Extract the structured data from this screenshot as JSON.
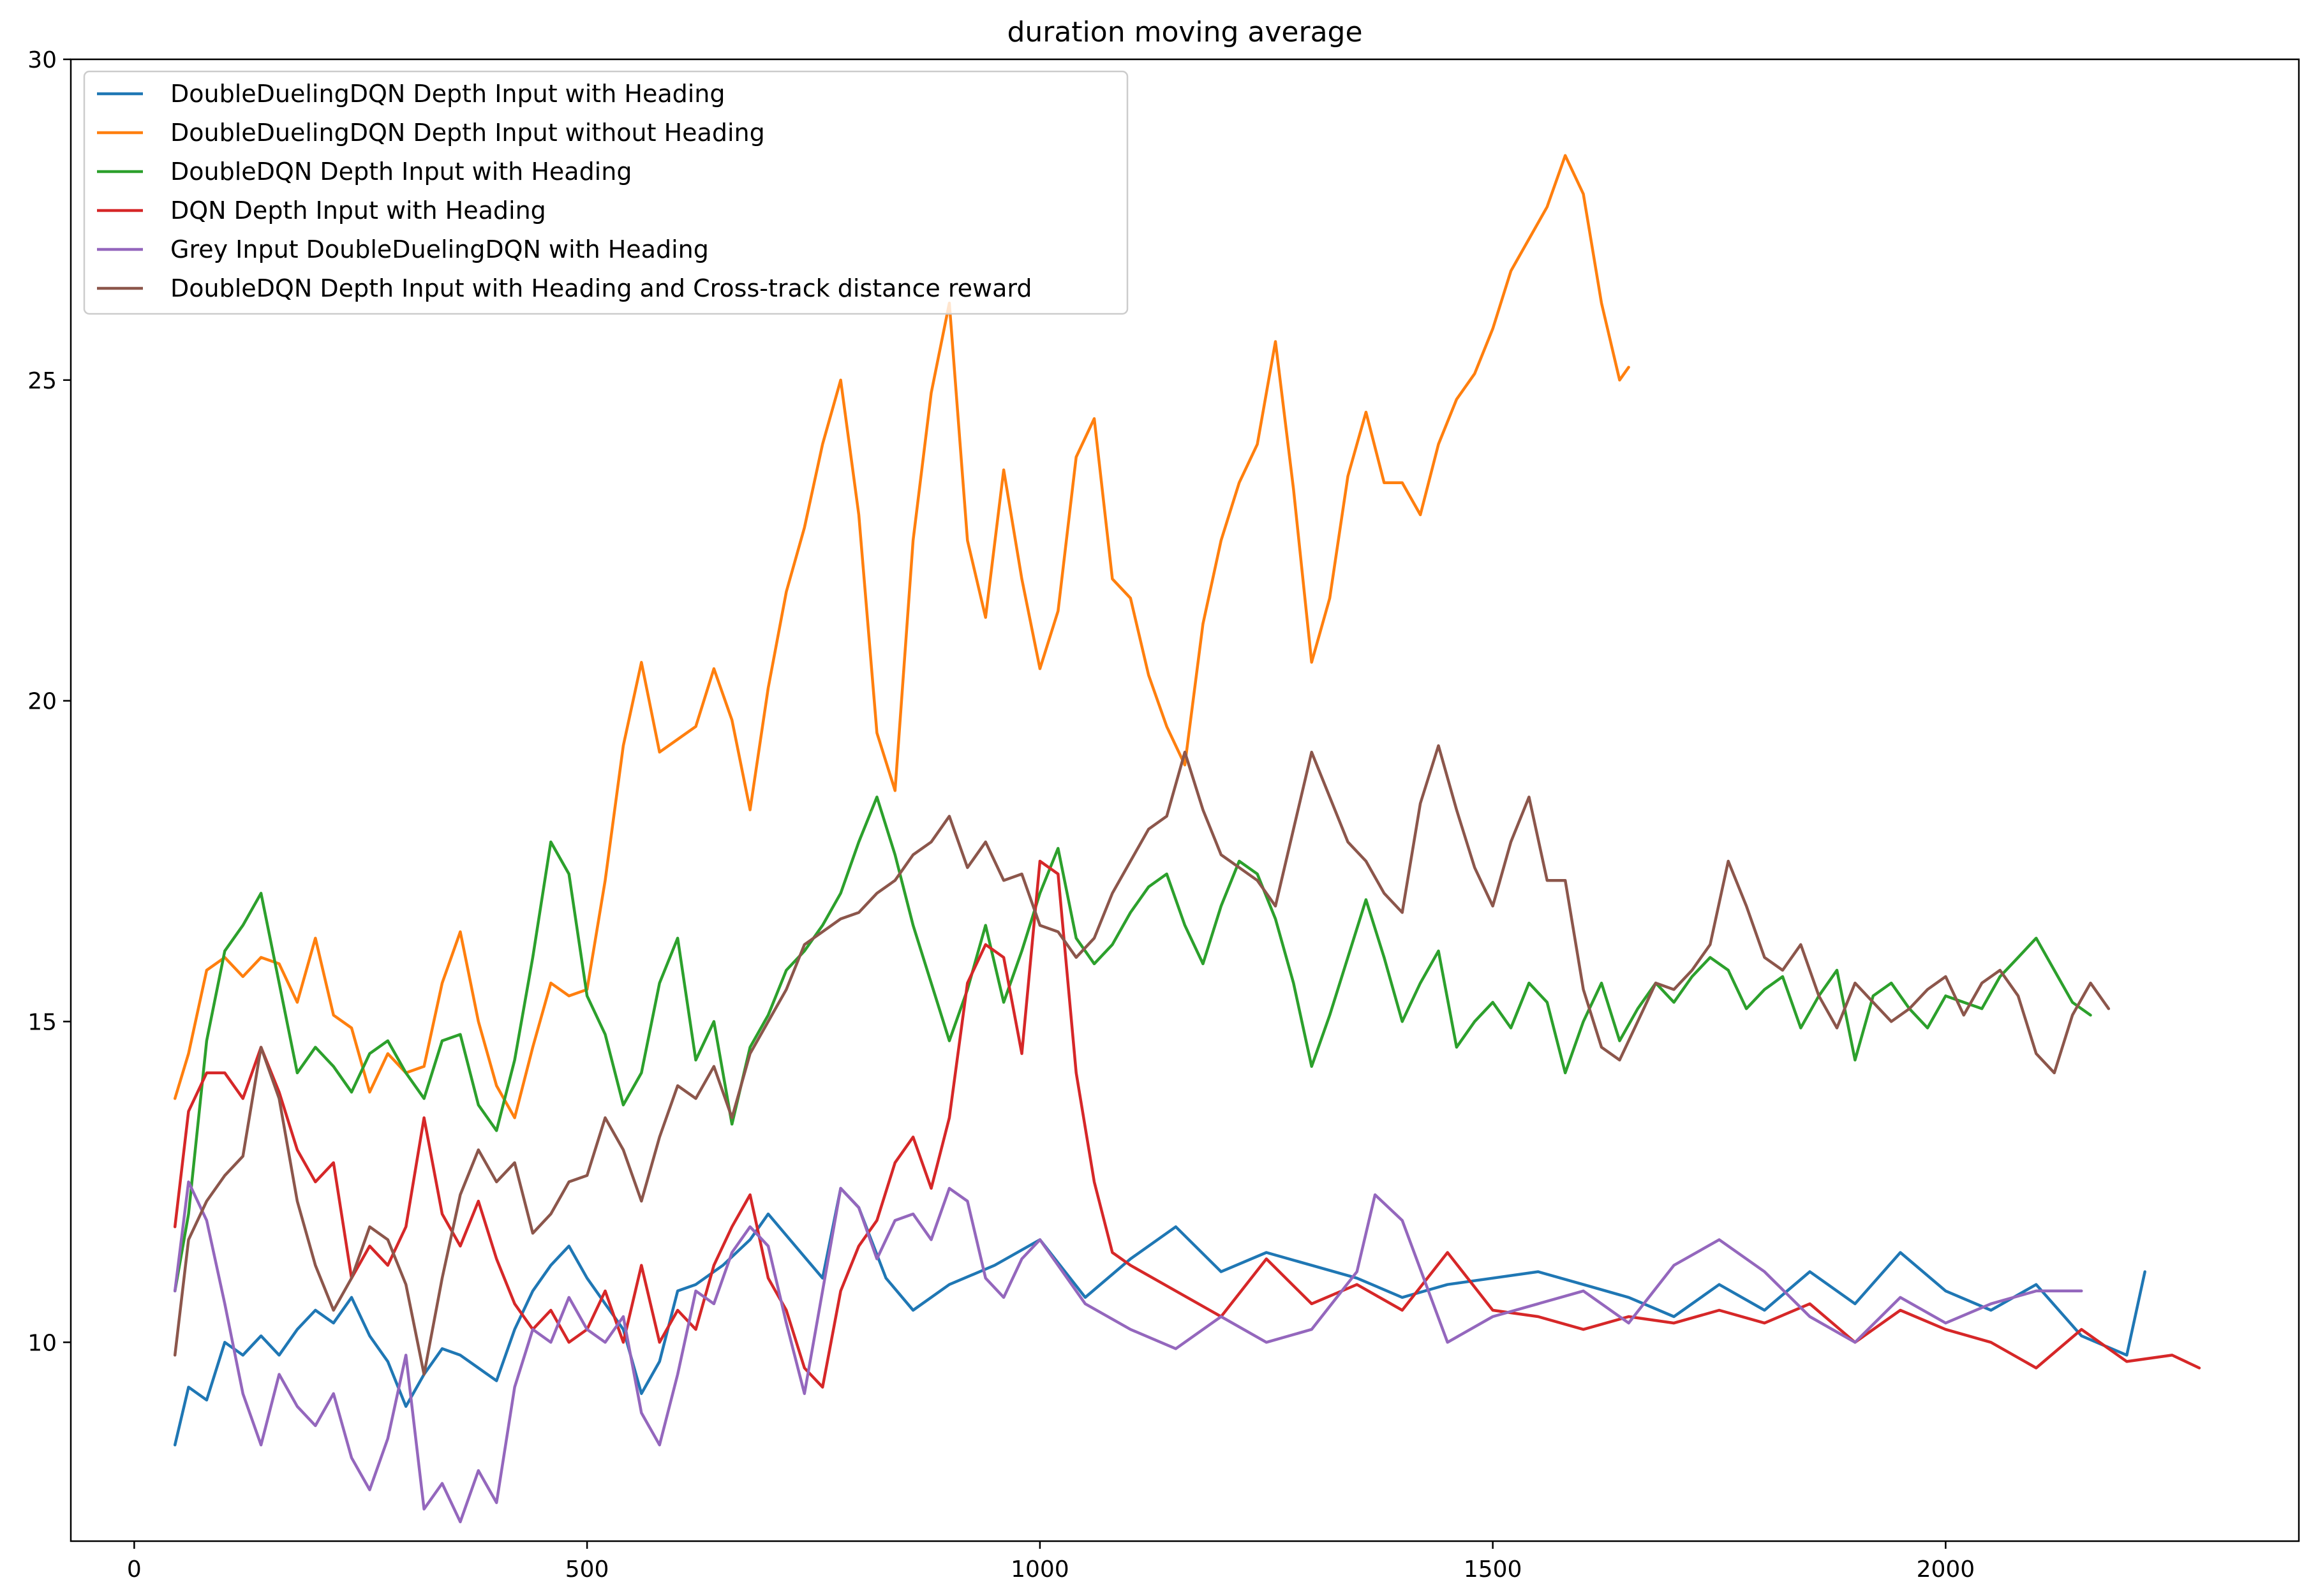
{
  "chart_data": {
    "type": "line",
    "title": "duration moving average",
    "xlabel": "",
    "ylabel": "",
    "xlim": [
      -70,
      2390
    ],
    "ylim": [
      6.9,
      30
    ],
    "xticks": [
      0,
      500,
      1000,
      1500,
      2000
    ],
    "yticks": [
      10,
      15,
      20,
      25,
      30
    ],
    "grid": false,
    "legend_position": "upper-left",
    "series": [
      {
        "name": "DoubleDuelingDQN Depth Input with Heading",
        "color": "#1f77b4",
        "x": [
          45,
          60,
          80,
          100,
          120,
          140,
          160,
          180,
          200,
          220,
          240,
          260,
          280,
          300,
          320,
          340,
          360,
          380,
          400,
          420,
          440,
          460,
          480,
          500,
          520,
          540,
          560,
          580,
          600,
          620,
          650,
          680,
          700,
          730,
          760,
          780,
          800,
          830,
          860,
          900,
          950,
          1000,
          1050,
          1100,
          1150,
          1200,
          1250,
          1300,
          1350,
          1400,
          1450,
          1500,
          1550,
          1600,
          1650,
          1700,
          1750,
          1800,
          1850,
          1900,
          1950,
          2000,
          2050,
          2100,
          2150,
          2200,
          2220
        ],
        "y": [
          8.4,
          9.3,
          9.1,
          10.0,
          9.8,
          10.1,
          9.8,
          10.2,
          10.5,
          10.3,
          10.7,
          10.1,
          9.7,
          9.0,
          9.5,
          9.9,
          9.8,
          9.6,
          9.4,
          10.2,
          10.8,
          11.2,
          11.5,
          11.0,
          10.6,
          10.2,
          9.2,
          9.7,
          10.8,
          10.9,
          11.2,
          11.6,
          12.0,
          11.5,
          11.0,
          12.4,
          12.1,
          11.0,
          10.5,
          10.9,
          11.2,
          11.6,
          10.7,
          11.3,
          11.8,
          11.1,
          11.4,
          11.2,
          11.0,
          10.7,
          10.9,
          11.0,
          11.1,
          10.9,
          10.7,
          10.4,
          10.9,
          10.5,
          11.1,
          10.6,
          11.4,
          10.8,
          10.5,
          10.9,
          10.1,
          9.8,
          11.1
        ]
      },
      {
        "name": "DoubleDuelingDQN Depth Input without Heading",
        "color": "#ff7f0e",
        "x": [
          45,
          60,
          80,
          100,
          120,
          140,
          160,
          180,
          200,
          220,
          240,
          260,
          280,
          300,
          320,
          340,
          360,
          380,
          400,
          420,
          440,
          460,
          480,
          500,
          520,
          540,
          560,
          580,
          600,
          620,
          640,
          660,
          680,
          700,
          720,
          740,
          760,
          780,
          800,
          820,
          840,
          860,
          880,
          900,
          920,
          940,
          960,
          980,
          1000,
          1020,
          1040,
          1060,
          1080,
          1100,
          1120,
          1140,
          1160,
          1180,
          1200,
          1220,
          1240,
          1260,
          1280,
          1300,
          1320,
          1340,
          1360,
          1380,
          1400,
          1420,
          1440,
          1460,
          1480,
          1500,
          1520,
          1540,
          1560,
          1580,
          1600,
          1620,
          1640,
          1650
        ],
        "y": [
          13.8,
          14.5,
          15.8,
          16.0,
          15.7,
          16.0,
          15.9,
          15.3,
          16.3,
          15.1,
          14.9,
          13.9,
          14.5,
          14.2,
          14.3,
          15.6,
          16.4,
          15.0,
          14.0,
          13.5,
          14.6,
          15.6,
          15.4,
          15.5,
          17.2,
          19.3,
          20.6,
          19.2,
          19.4,
          19.6,
          20.5,
          19.7,
          18.3,
          20.2,
          21.7,
          22.7,
          24.0,
          25.0,
          22.9,
          19.5,
          18.6,
          22.5,
          24.8,
          26.2,
          22.5,
          21.3,
          23.6,
          21.9,
          20.5,
          21.4,
          23.8,
          24.4,
          21.9,
          21.6,
          20.4,
          19.6,
          19.0,
          21.2,
          22.5,
          23.4,
          24.0,
          25.6,
          23.3,
          20.6,
          21.6,
          23.5,
          24.5,
          23.4,
          23.4,
          22.9,
          24.0,
          24.7,
          25.1,
          25.8,
          26.7,
          27.2,
          27.7,
          28.5,
          27.9,
          26.2,
          25.0,
          25.2
        ]
      },
      {
        "name": "DoubleDQN Depth Input with Heading",
        "color": "#2ca02c",
        "x": [
          45,
          60,
          80,
          100,
          120,
          140,
          160,
          180,
          200,
          220,
          240,
          260,
          280,
          300,
          320,
          340,
          360,
          380,
          400,
          420,
          440,
          460,
          480,
          500,
          520,
          540,
          560,
          580,
          600,
          620,
          640,
          660,
          680,
          700,
          720,
          740,
          760,
          780,
          800,
          820,
          840,
          860,
          880,
          900,
          920,
          940,
          960,
          980,
          1000,
          1020,
          1040,
          1060,
          1080,
          1100,
          1120,
          1140,
          1160,
          1180,
          1200,
          1220,
          1240,
          1260,
          1280,
          1300,
          1320,
          1340,
          1360,
          1380,
          1400,
          1420,
          1440,
          1460,
          1480,
          1500,
          1520,
          1540,
          1560,
          1580,
          1600,
          1620,
          1640,
          1660,
          1680,
          1700,
          1720,
          1740,
          1760,
          1780,
          1800,
          1820,
          1840,
          1860,
          1880,
          1900,
          1920,
          1940,
          1960,
          1980,
          2000,
          2020,
          2040,
          2060,
          2080,
          2100,
          2120,
          2140,
          2160
        ],
        "y": [
          10.8,
          12.0,
          14.7,
          16.1,
          16.5,
          17.0,
          15.6,
          14.2,
          14.6,
          14.3,
          13.9,
          14.5,
          14.7,
          14.2,
          13.8,
          14.7,
          14.8,
          13.7,
          13.3,
          14.4,
          16.0,
          17.8,
          17.3,
          15.4,
          14.8,
          13.7,
          14.2,
          15.6,
          16.3,
          14.4,
          15.0,
          13.4,
          14.6,
          15.1,
          15.8,
          16.1,
          16.5,
          17.0,
          17.8,
          18.5,
          17.6,
          16.5,
          15.6,
          14.7,
          15.5,
          16.5,
          15.3,
          16.1,
          17.0,
          17.7,
          16.3,
          15.9,
          16.2,
          16.7,
          17.1,
          17.3,
          16.5,
          15.9,
          16.8,
          17.5,
          17.3,
          16.6,
          15.6,
          14.3,
          15.1,
          16.0,
          16.9,
          16.0,
          15.0,
          15.6,
          16.1,
          14.6,
          15.0,
          15.3,
          14.9,
          15.6,
          15.3,
          14.2,
          15.0,
          15.6,
          14.7,
          15.2,
          15.6,
          15.3,
          15.7,
          16.0,
          15.8,
          15.2,
          15.5,
          15.7,
          14.9,
          15.4,
          15.8,
          14.4,
          15.4,
          15.6,
          15.2,
          14.9,
          15.4,
          15.3,
          15.2,
          15.7,
          16.0,
          16.3,
          15.8,
          15.3,
          15.1
        ]
      },
      {
        "name": "DQN Depth Input with Heading",
        "color": "#d62728",
        "x": [
          45,
          60,
          80,
          100,
          120,
          140,
          160,
          180,
          200,
          220,
          240,
          260,
          280,
          300,
          320,
          340,
          360,
          380,
          400,
          420,
          440,
          460,
          480,
          500,
          520,
          540,
          560,
          580,
          600,
          620,
          640,
          660,
          680,
          700,
          720,
          740,
          760,
          780,
          800,
          820,
          840,
          860,
          880,
          900,
          920,
          940,
          960,
          980,
          1000,
          1020,
          1040,
          1060,
          1080,
          1100,
          1150,
          1200,
          1250,
          1300,
          1350,
          1400,
          1450,
          1500,
          1550,
          1600,
          1650,
          1700,
          1750,
          1800,
          1850,
          1900,
          1950,
          2000,
          2050,
          2100,
          2150,
          2200,
          2250,
          2280
        ],
        "y": [
          11.8,
          13.6,
          14.2,
          14.2,
          13.8,
          14.6,
          13.9,
          13.0,
          12.5,
          12.8,
          11.0,
          11.5,
          11.2,
          11.8,
          13.5,
          12.0,
          11.5,
          12.2,
          11.3,
          10.6,
          10.2,
          10.5,
          10.0,
          10.2,
          10.8,
          10.0,
          11.2,
          10.0,
          10.5,
          10.2,
          11.2,
          11.8,
          12.3,
          11.0,
          10.5,
          9.6,
          9.3,
          10.8,
          11.5,
          11.9,
          12.8,
          13.2,
          12.4,
          13.5,
          15.6,
          16.2,
          16.0,
          14.5,
          17.5,
          17.3,
          14.2,
          12.5,
          11.4,
          11.2,
          10.8,
          10.4,
          11.3,
          10.6,
          10.9,
          10.5,
          11.4,
          10.5,
          10.4,
          10.2,
          10.4,
          10.3,
          10.5,
          10.3,
          10.6,
          10.0,
          10.5,
          10.2,
          10.0,
          9.6,
          10.2,
          9.7,
          9.8,
          9.6
        ]
      },
      {
        "name": "Grey Input DoubleDuelingDQN with Heading",
        "color": "#9467bd",
        "x": [
          45,
          60,
          80,
          100,
          120,
          140,
          160,
          180,
          200,
          220,
          240,
          260,
          280,
          300,
          320,
          340,
          360,
          380,
          400,
          420,
          440,
          460,
          480,
          500,
          520,
          540,
          560,
          580,
          600,
          620,
          640,
          660,
          680,
          700,
          720,
          740,
          760,
          780,
          800,
          820,
          840,
          860,
          880,
          900,
          920,
          940,
          960,
          980,
          1000,
          1050,
          1100,
          1150,
          1200,
          1250,
          1300,
          1350,
          1370,
          1400,
          1450,
          1500,
          1550,
          1600,
          1650,
          1700,
          1750,
          1800,
          1850,
          1900,
          1950,
          2000,
          2050,
          2100,
          2150
        ],
        "y": [
          10.8,
          12.5,
          11.9,
          10.6,
          9.2,
          8.4,
          9.5,
          9.0,
          8.7,
          9.2,
          8.2,
          7.7,
          8.5,
          9.8,
          7.4,
          7.8,
          7.2,
          8.0,
          7.5,
          9.3,
          10.2,
          10.0,
          10.7,
          10.2,
          10.0,
          10.4,
          8.9,
          8.4,
          9.5,
          10.8,
          10.6,
          11.4,
          11.8,
          11.5,
          10.3,
          9.2,
          10.8,
          12.4,
          12.1,
          11.3,
          11.9,
          12.0,
          11.6,
          12.4,
          12.2,
          11.0,
          10.7,
          11.3,
          11.6,
          10.6,
          10.2,
          9.9,
          10.4,
          10.0,
          10.2,
          11.1,
          12.3,
          11.9,
          10.0,
          10.4,
          10.6,
          10.8,
          10.3,
          11.2,
          11.6,
          11.1,
          10.4,
          10.0,
          10.7,
          10.3,
          10.6,
          10.8,
          10.8
        ]
      },
      {
        "name": "DoubleDQN Depth Input with Heading and Cross-track distance reward",
        "color": "#8c564b",
        "x": [
          45,
          60,
          80,
          100,
          120,
          140,
          160,
          180,
          200,
          220,
          240,
          260,
          280,
          300,
          320,
          340,
          360,
          380,
          400,
          420,
          440,
          460,
          480,
          500,
          520,
          540,
          560,
          580,
          600,
          620,
          640,
          660,
          680,
          700,
          720,
          740,
          760,
          780,
          800,
          820,
          840,
          860,
          880,
          900,
          920,
          940,
          960,
          980,
          1000,
          1020,
          1040,
          1060,
          1080,
          1100,
          1120,
          1140,
          1160,
          1180,
          1200,
          1220,
          1240,
          1260,
          1280,
          1300,
          1320,
          1340,
          1360,
          1380,
          1400,
          1420,
          1440,
          1460,
          1480,
          1500,
          1520,
          1540,
          1560,
          1580,
          1600,
          1620,
          1640,
          1660,
          1680,
          1700,
          1720,
          1740,
          1760,
          1780,
          1800,
          1820,
          1840,
          1860,
          1880,
          1900,
          1920,
          1940,
          1960,
          1980,
          2000,
          2020,
          2040,
          2060,
          2080,
          2100,
          2120,
          2140,
          2160,
          2180
        ],
        "y": [
          9.8,
          11.6,
          12.2,
          12.6,
          12.9,
          14.6,
          13.8,
          12.2,
          11.2,
          10.5,
          11.0,
          11.8,
          11.6,
          10.9,
          9.5,
          11.0,
          12.3,
          13.0,
          12.5,
          12.8,
          11.7,
          12.0,
          12.5,
          12.6,
          13.5,
          13.0,
          12.2,
          13.2,
          14.0,
          13.8,
          14.3,
          13.5,
          14.5,
          15.0,
          15.5,
          16.2,
          16.4,
          16.6,
          16.7,
          17.0,
          17.2,
          17.6,
          17.8,
          18.2,
          17.4,
          17.8,
          17.2,
          17.3,
          16.5,
          16.4,
          16.0,
          16.3,
          17.0,
          17.5,
          18.0,
          18.2,
          19.2,
          18.3,
          17.6,
          17.4,
          17.2,
          16.8,
          18.0,
          19.2,
          18.5,
          17.8,
          17.5,
          17.0,
          16.7,
          18.4,
          19.3,
          18.3,
          17.4,
          16.8,
          17.8,
          18.5,
          17.2,
          17.2,
          15.5,
          14.6,
          14.4,
          15.0,
          15.6,
          15.5,
          15.8,
          16.2,
          17.5,
          16.8,
          16.0,
          15.8,
          16.2,
          15.4,
          14.9,
          15.6,
          15.3,
          15.0,
          15.2,
          15.5,
          15.7,
          15.1,
          15.6,
          15.8,
          15.4,
          14.5,
          14.2,
          15.1,
          15.6,
          15.2
        ]
      }
    ]
  }
}
